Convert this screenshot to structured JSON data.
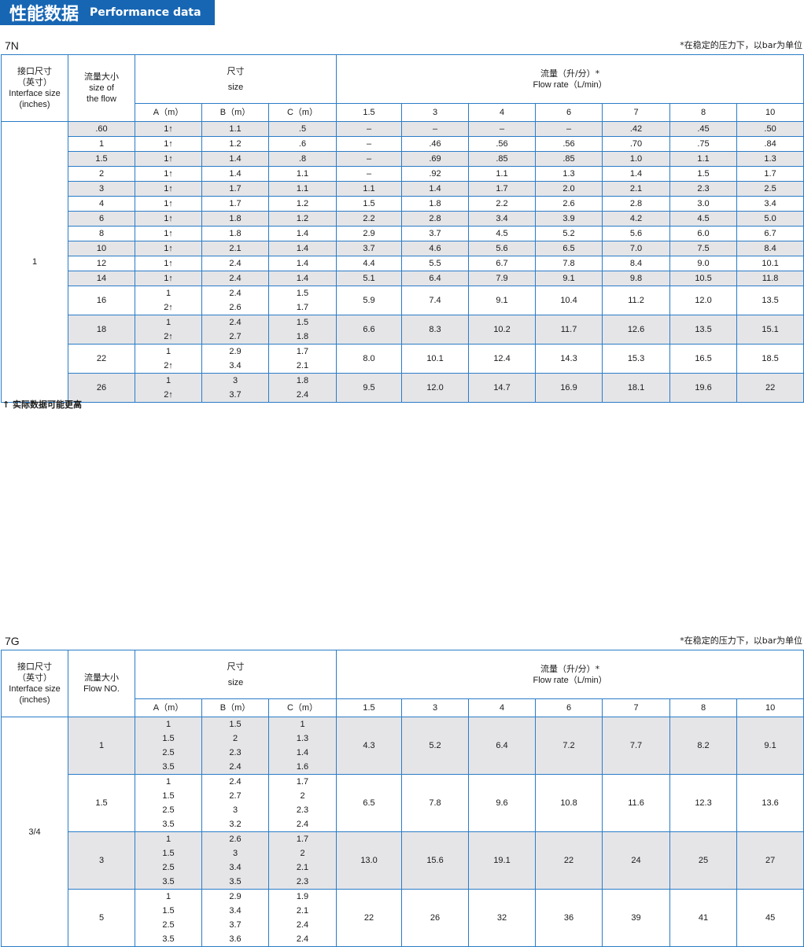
{
  "banner": {
    "title_cn": "性能数据",
    "title_en": "Performance data",
    "color": "#1766b3"
  },
  "footnote": "↑ 实际数据可能更高",
  "tables": [
    {
      "model": "7N",
      "note": "*在稳定的压力下，以bar为单位",
      "headers": {
        "interface": [
          "接口尺寸",
          "（英寸）",
          "Interface size",
          "(inches)"
        ],
        "flow": [
          "流量大小",
          "",
          "size of",
          "the flow"
        ],
        "size": [
          "尺寸",
          "size"
        ],
        "rate": [
          "流量（升/分）*",
          "Flow rate（L/min）"
        ],
        "dims": [
          "A（m）",
          "B（m）",
          "C（m）"
        ],
        "pressures": [
          "1.5",
          "3",
          "4",
          "6",
          "7",
          "8",
          "10"
        ]
      },
      "interface_value": "1",
      "rows": [
        {
          "flow": ".60",
          "A": [
            "1↑"
          ],
          "B": [
            "1.1"
          ],
          "C": [
            ".5"
          ],
          "rates": [
            "–",
            "–",
            "–",
            "–",
            ".42",
            ".45",
            ".50"
          ]
        },
        {
          "flow": "1",
          "A": [
            "1↑"
          ],
          "B": [
            "1.2"
          ],
          "C": [
            ".6"
          ],
          "rates": [
            "–",
            ".46",
            ".56",
            ".56",
            ".70",
            ".75",
            ".84"
          ]
        },
        {
          "flow": "1.5",
          "A": [
            "1↑"
          ],
          "B": [
            "1.4"
          ],
          "C": [
            ".8"
          ],
          "rates": [
            "–",
            ".69",
            ".85",
            ".85",
            "1.0",
            "1.1",
            "1.3"
          ]
        },
        {
          "flow": "2",
          "A": [
            "1↑"
          ],
          "B": [
            "1.4"
          ],
          "C": [
            "1.1"
          ],
          "rates": [
            "–",
            ".92",
            "1.1",
            "1.3",
            "1.4",
            "1.5",
            "1.7"
          ]
        },
        {
          "flow": "3",
          "A": [
            "1↑"
          ],
          "B": [
            "1.7"
          ],
          "C": [
            "1.1"
          ],
          "rates": [
            "1.1",
            "1.4",
            "1.7",
            "2.0",
            "2.1",
            "2.3",
            "2.5"
          ]
        },
        {
          "flow": "4",
          "A": [
            "1↑"
          ],
          "B": [
            "1.7"
          ],
          "C": [
            "1.2"
          ],
          "rates": [
            "1.5",
            "1.8",
            "2.2",
            "2.6",
            "2.8",
            "3.0",
            "3.4"
          ]
        },
        {
          "flow": "6",
          "A": [
            "1↑"
          ],
          "B": [
            "1.8"
          ],
          "C": [
            "1.2"
          ],
          "rates": [
            "2.2",
            "2.8",
            "3.4",
            "3.9",
            "4.2",
            "4.5",
            "5.0"
          ]
        },
        {
          "flow": "8",
          "A": [
            "1↑"
          ],
          "B": [
            "1.8"
          ],
          "C": [
            "1.4"
          ],
          "rates": [
            "2.9",
            "3.7",
            "4.5",
            "5.2",
            "5.6",
            "6.0",
            "6.7"
          ]
        },
        {
          "flow": "10",
          "A": [
            "1↑"
          ],
          "B": [
            "2.1"
          ],
          "C": [
            "1.4"
          ],
          "rates": [
            "3.7",
            "4.6",
            "5.6",
            "6.5",
            "7.0",
            "7.5",
            "8.4"
          ]
        },
        {
          "flow": "12",
          "A": [
            "1↑"
          ],
          "B": [
            "2.4"
          ],
          "C": [
            "1.4"
          ],
          "rates": [
            "4.4",
            "5.5",
            "6.7",
            "7.8",
            "8.4",
            "9.0",
            "10.1"
          ]
        },
        {
          "flow": "14",
          "A": [
            "1↑"
          ],
          "B": [
            "2.4"
          ],
          "C": [
            "1.4"
          ],
          "rates": [
            "5.1",
            "6.4",
            "7.9",
            "9.1",
            "9.8",
            "10.5",
            "11.8"
          ]
        },
        {
          "flow": "16",
          "A": [
            "1",
            "2↑"
          ],
          "B": [
            "2.4",
            "2.6"
          ],
          "C": [
            "1.5",
            "1.7"
          ],
          "rates": [
            "5.9",
            "7.4",
            "9.1",
            "10.4",
            "11.2",
            "12.0",
            "13.5"
          ]
        },
        {
          "flow": "18",
          "A": [
            "1",
            "2↑"
          ],
          "B": [
            "2.4",
            "2.7"
          ],
          "C": [
            "1.5",
            "1.8"
          ],
          "rates": [
            "6.6",
            "8.3",
            "10.2",
            "11.7",
            "12.6",
            "13.5",
            "15.1"
          ]
        },
        {
          "flow": "22",
          "A": [
            "1",
            "2↑"
          ],
          "B": [
            "2.9",
            "3.4"
          ],
          "C": [
            "1.7",
            "2.1"
          ],
          "rates": [
            "8.0",
            "10.1",
            "12.4",
            "14.3",
            "15.3",
            "16.5",
            "18.5"
          ]
        },
        {
          "flow": "26",
          "A": [
            "1",
            "2↑"
          ],
          "B": [
            "3",
            "3.7"
          ],
          "C": [
            "1.8",
            "2.4"
          ],
          "rates": [
            "9.5",
            "12.0",
            "14.7",
            "16.9",
            "18.1",
            "19.6",
            "22"
          ]
        }
      ]
    },
    {
      "model": "7G",
      "note": "*在稳定的压力下，以bar为单位",
      "headers": {
        "interface": [
          "接口尺寸",
          "（英寸）",
          "Interface size",
          "(inches)"
        ],
        "flow": [
          "流量大小",
          "Flow NO."
        ],
        "size": [
          "尺寸",
          "size"
        ],
        "rate": [
          "流量（升/分）*",
          "Flow rate（L/min）"
        ],
        "dims": [
          "A（m）",
          "B（m）",
          "C（m）"
        ],
        "pressures": [
          "1.5",
          "3",
          "4",
          "6",
          "7",
          "8",
          "10"
        ]
      },
      "interface_value": "3/4",
      "rows": [
        {
          "flow": "1",
          "A": [
            "1",
            "1.5",
            "2.5",
            "3.5"
          ],
          "B": [
            "1.5",
            "2",
            "2.3",
            "2.4"
          ],
          "C": [
            "1",
            "1.3",
            "1.4",
            "1.6"
          ],
          "rates": [
            "4.3",
            "5.2",
            "6.4",
            "7.2",
            "7.7",
            "8.2",
            "9.1"
          ]
        },
        {
          "flow": "1.5",
          "A": [
            "1",
            "1.5",
            "2.5",
            "3.5"
          ],
          "B": [
            "2.4",
            "2.7",
            "3",
            "3.2"
          ],
          "C": [
            "1.7",
            "2",
            "2.3",
            "2.4"
          ],
          "rates": [
            "6.5",
            "7.8",
            "9.6",
            "10.8",
            "11.6",
            "12.3",
            "13.6"
          ]
        },
        {
          "flow": "3",
          "A": [
            "1",
            "1.5",
            "2.5",
            "3.5"
          ],
          "B": [
            "2.6",
            "3",
            "3.4",
            "3.5"
          ],
          "C": [
            "1.7",
            "2",
            "2.1",
            "2.3"
          ],
          "rates": [
            "13.0",
            "15.6",
            "19.1",
            "22",
            "24",
            "25",
            "27"
          ]
        },
        {
          "flow": "5",
          "A": [
            "1",
            "1.5",
            "2.5",
            "3.5"
          ],
          "B": [
            "2.9",
            "3.4",
            "3.7",
            "3.6"
          ],
          "C": [
            "1.9",
            "2.1",
            "2.4",
            "2.4"
          ],
          "rates": [
            "22",
            "26",
            "32",
            "36",
            "39",
            "41",
            "45"
          ]
        }
      ]
    }
  ]
}
